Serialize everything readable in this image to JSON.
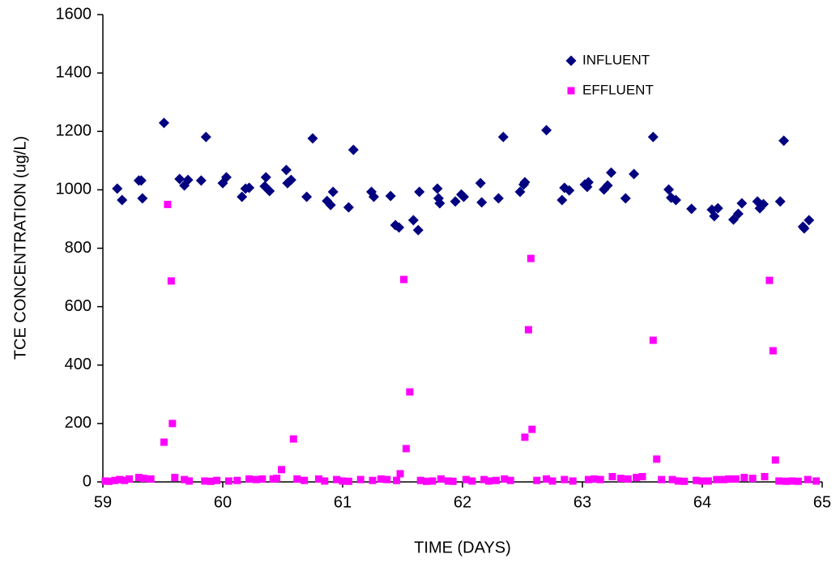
{
  "chart_data": {
    "type": "scatter",
    "xlabel": "TIME (DAYS)",
    "ylabel": "TCE CONCENTRATION (ug/L)",
    "xlim": [
      59,
      65
    ],
    "xticks": [
      59,
      60,
      61,
      62,
      63,
      64,
      65
    ],
    "ylim": [
      0,
      1600
    ],
    "yticks": [
      0,
      200,
      400,
      600,
      800,
      1000,
      1200,
      1400,
      1600
    ],
    "grid": false,
    "legend": "upper right",
    "series": [
      {
        "name": "INFLUENT",
        "color": "#000080",
        "marker": "diamond",
        "x": [
          59.12,
          59.16,
          59.3,
          59.32,
          59.33,
          59.51,
          59.64,
          59.68,
          59.71,
          59.82,
          59.86,
          60.0,
          60.03,
          60.16,
          60.19,
          60.22,
          60.36,
          60.35,
          60.39,
          60.53,
          60.54,
          60.57,
          60.7,
          60.75,
          60.87,
          60.9,
          60.92,
          61.05,
          61.09,
          61.24,
          61.26,
          61.4,
          61.44,
          61.47,
          61.59,
          61.63,
          61.64,
          61.79,
          61.8,
          61.81,
          61.94,
          61.99,
          62.01,
          62.15,
          62.16,
          62.3,
          62.34,
          62.48,
          62.51,
          62.52,
          62.7,
          62.83,
          62.85,
          62.89,
          63.02,
          63.04,
          63.05,
          63.18,
          63.21,
          63.24,
          63.36,
          63.43,
          63.59,
          63.72,
          63.74,
          63.78,
          63.91,
          64.08,
          64.1,
          64.13,
          64.26,
          64.3,
          64.33,
          64.46,
          64.48,
          64.51,
          64.65,
          64.68,
          64.84,
          64.85,
          64.89
        ],
        "values": [
          1004,
          965,
          1032,
          1032,
          971,
          1229,
          1037,
          1015,
          1034,
          1032,
          1181,
          1023,
          1043,
          976,
          1004,
          1007,
          1043,
          1012,
          996,
          1068,
          1023,
          1034,
          976,
          1176,
          962,
          948,
          993,
          940,
          1137,
          993,
          976,
          979,
          879,
          871,
          896,
          862,
          993,
          1004,
          971,
          954,
          960,
          984,
          976,
          1023,
          957,
          971,
          1181,
          993,
          1018,
          1026,
          1204,
          965,
          1007,
          998,
          1018,
          1010,
          1026,
          1001,
          1015,
          1059,
          971,
          1054,
          1181,
          1001,
          973,
          965,
          935,
          932,
          910,
          937,
          898,
          918,
          954,
          960,
          937,
          951,
          960,
          1168,
          874,
          868,
          896
        ]
      },
      {
        "name": "EFFLUENT",
        "color": "#ff00ff",
        "marker": "square",
        "x": [
          59.02,
          59.05,
          59.1,
          59.14,
          59.18,
          59.22,
          59.3,
          59.34,
          59.4,
          59.51,
          59.54,
          59.57,
          59.58,
          59.6,
          59.68,
          59.72,
          59.85,
          59.9,
          59.95,
          60.05,
          60.12,
          60.22,
          60.28,
          60.33,
          60.42,
          60.45,
          60.49,
          60.59,
          60.62,
          60.68,
          60.8,
          60.85,
          60.95,
          61.0,
          61.05,
          61.15,
          61.25,
          61.32,
          61.37,
          61.45,
          61.48,
          61.51,
          61.53,
          61.56,
          61.65,
          61.7,
          61.75,
          61.82,
          61.88,
          61.92,
          62.03,
          62.08,
          62.18,
          62.22,
          62.28,
          62.35,
          62.4,
          62.52,
          62.55,
          62.57,
          62.58,
          62.62,
          62.7,
          62.75,
          62.85,
          62.92,
          63.05,
          63.1,
          63.15,
          63.25,
          63.32,
          63.38,
          63.45,
          63.5,
          63.59,
          63.62,
          63.66,
          63.75,
          63.8,
          63.85,
          63.95,
          64.0,
          64.05,
          64.12,
          64.18,
          64.22,
          64.28,
          64.35,
          64.42,
          64.52,
          64.56,
          64.59,
          64.61,
          64.64,
          64.7,
          64.75,
          64.8,
          64.88,
          64.95
        ],
        "values": [
          3,
          2,
          5,
          8,
          5,
          10,
          15,
          12,
          10,
          136,
          950,
          688,
          200,
          15,
          8,
          3,
          3,
          2,
          5,
          3,
          5,
          10,
          8,
          10,
          10,
          12,
          42,
          147,
          10,
          5,
          10,
          3,
          8,
          3,
          2,
          8,
          5,
          10,
          8,
          5,
          28,
          693,
          114,
          308,
          5,
          2,
          3,
          10,
          3,
          2,
          8,
          3,
          8,
          3,
          5,
          10,
          5,
          153,
          521,
          765,
          180,
          5,
          10,
          3,
          8,
          3,
          8,
          10,
          8,
          18,
          12,
          10,
          15,
          18,
          485,
          78,
          8,
          8,
          3,
          2,
          5,
          3,
          3,
          8,
          8,
          10,
          10,
          15,
          12,
          18,
          690,
          449,
          75,
          3,
          2,
          3,
          2,
          8,
          3
        ]
      }
    ]
  }
}
